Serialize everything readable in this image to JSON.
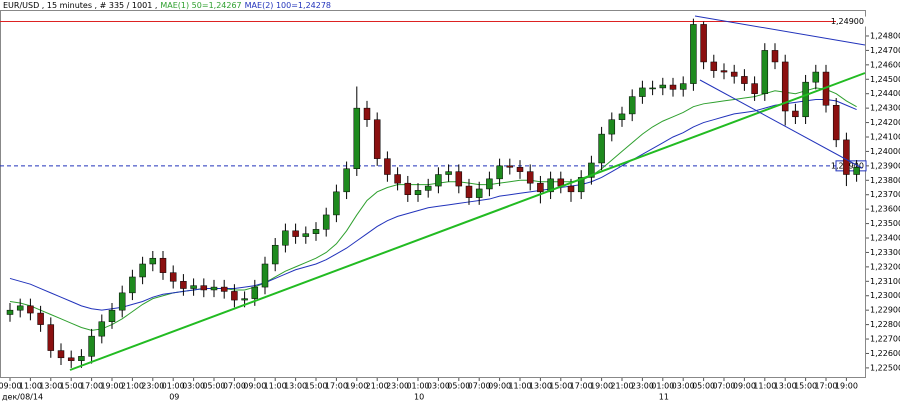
{
  "chart_data": {
    "type": "candlestick",
    "title": "EUR/USD , 15 minutes , # 335 / 1001 ,",
    "categories": [
      "09:00",
      null,
      "11:00",
      null,
      "13:00",
      null,
      "15:00",
      null,
      "17:00",
      null,
      "19:00",
      null,
      "21:00",
      null,
      "23:00",
      null,
      "01:00",
      null,
      "03:00",
      null,
      "05:00",
      null,
      "07:00",
      null,
      "09:00",
      null,
      "11:00",
      null,
      "13:00",
      null,
      "15:00",
      null,
      "17:00",
      null,
      "19:00",
      null,
      "21:00",
      null,
      "23:00",
      null,
      "01:00",
      null,
      "03:00",
      null,
      "05:00",
      null,
      "07:00",
      null,
      "09:00",
      null,
      "11:00",
      null,
      "13:00",
      null,
      "15:00",
      null,
      "17:00",
      null,
      "19:00",
      null,
      "21:00",
      null,
      "23:00",
      null,
      "01:00",
      null,
      "03:00",
      null,
      "05:00",
      null,
      "07:00",
      null,
      "09:00",
      null,
      "11:00",
      null,
      "13:00",
      null,
      "15:00",
      null,
      "17:00",
      null,
      "19:00",
      null
    ],
    "day_categories": [
      "дек/08/14",
      null,
      null,
      null,
      null,
      null,
      null,
      null,
      null,
      null,
      null,
      null,
      null,
      null,
      null,
      null,
      "09",
      null,
      null,
      null,
      null,
      null,
      null,
      null,
      null,
      null,
      null,
      null,
      null,
      null,
      null,
      null,
      null,
      null,
      null,
      null,
      null,
      null,
      null,
      null,
      "10",
      null,
      null,
      null,
      null,
      null,
      null,
      null,
      null,
      null,
      null,
      null,
      null,
      null,
      null,
      null,
      null,
      null,
      null,
      null,
      null,
      null,
      null,
      null,
      "11",
      null,
      null,
      null,
      null,
      null,
      null,
      null,
      null,
      null,
      null,
      null,
      null,
      null,
      null,
      null,
      null,
      null,
      null,
      null
    ],
    "open": [
      1.2287,
      1.229,
      1.2293,
      1.2288,
      1.228,
      1.2262,
      1.2257,
      1.2255,
      1.2258,
      1.2272,
      1.2282,
      1.229,
      1.2302,
      1.2313,
      1.2322,
      1.2326,
      1.2316,
      1.231,
      1.2305,
      1.2307,
      1.2304,
      1.2306,
      1.2303,
      1.2297,
      1.2298,
      1.2306,
      1.2322,
      1.2335,
      1.2345,
      1.2341,
      1.2343,
      1.2346,
      1.2356,
      1.2372,
      1.2388,
      1.243,
      1.2422,
      1.2395,
      1.2384,
      1.2378,
      1.237,
      1.2373,
      1.2376,
      1.2384,
      1.2386,
      1.2376,
      1.2368,
      1.2374,
      1.2381,
      1.239,
      1.2389,
      1.2386,
      1.2378,
      1.2372,
      1.2381,
      1.2376,
      1.2372,
      1.2382,
      1.2392,
      1.2412,
      1.2422,
      1.2426,
      1.2438,
      1.2444,
      1.2444,
      1.2446,
      1.2443,
      1.2447,
      1.2488,
      1.2462,
      1.2456,
      1.2455,
      1.2452,
      1.2447,
      1.244,
      1.247,
      1.2462,
      1.2428,
      1.2424,
      1.2448,
      1.2455,
      1.2432,
      1.2408,
      1.2384
    ],
    "high": [
      1.2295,
      1.2298,
      1.2298,
      1.2293,
      1.2285,
      1.2267,
      1.2262,
      1.2263,
      1.2277,
      1.2287,
      1.2295,
      1.2307,
      1.2318,
      1.2327,
      1.2331,
      1.2331,
      1.2321,
      1.2315,
      1.2312,
      1.2312,
      1.2311,
      1.2311,
      1.2308,
      1.2303,
      1.2311,
      1.2327,
      1.234,
      1.235,
      1.235,
      1.2348,
      1.2351,
      1.2361,
      1.2377,
      1.2393,
      1.2445,
      1.2435,
      1.2427,
      1.24,
      1.2389,
      1.2383,
      1.2378,
      1.2381,
      1.2389,
      1.2391,
      1.2391,
      1.2381,
      1.2379,
      1.2386,
      1.2395,
      1.2395,
      1.2394,
      1.2391,
      1.2383,
      1.2386,
      1.2386,
      1.2381,
      1.2387,
      1.2397,
      1.2417,
      1.2427,
      1.2431,
      1.2443,
      1.2449,
      1.2449,
      1.2451,
      1.2451,
      1.2452,
      1.2492,
      1.249,
      1.2467,
      1.2461,
      1.246,
      1.2457,
      1.2452,
      1.2475,
      1.2475,
      1.2467,
      1.2433,
      1.2453,
      1.246,
      1.246,
      1.2437,
      1.2413,
      1.2394
    ],
    "low": [
      1.2282,
      1.2285,
      1.2283,
      1.2275,
      1.2257,
      1.2252,
      1.225,
      1.225,
      1.2253,
      1.2267,
      1.2277,
      1.2285,
      1.2297,
      1.2308,
      1.2317,
      1.2311,
      1.2305,
      1.23,
      1.23,
      1.2299,
      1.2299,
      1.2298,
      1.2292,
      1.2292,
      1.2293,
      1.2301,
      1.2317,
      1.233,
      1.2336,
      1.2336,
      1.2338,
      1.2341,
      1.2351,
      1.2367,
      1.2383,
      1.2417,
      1.239,
      1.2379,
      1.2373,
      1.2365,
      1.2365,
      1.2368,
      1.2371,
      1.2379,
      1.2371,
      1.2363,
      1.2363,
      1.2369,
      1.2376,
      1.2384,
      1.2381,
      1.2373,
      1.2364,
      1.2367,
      1.2371,
      1.2365,
      1.2367,
      1.2377,
      1.2387,
      1.2407,
      1.2417,
      1.2421,
      1.2433,
      1.2439,
      1.2439,
      1.2438,
      1.2438,
      1.2442,
      1.2457,
      1.2451,
      1.245,
      1.2447,
      1.2442,
      1.2435,
      1.2435,
      1.2457,
      1.2418,
      1.2419,
      1.2419,
      1.2443,
      1.2427,
      1.2403,
      1.2376,
      1.2379
    ],
    "close": [
      1.229,
      1.2293,
      1.2288,
      1.228,
      1.2262,
      1.2257,
      1.2255,
      1.2258,
      1.2272,
      1.2282,
      1.229,
      1.2302,
      1.2313,
      1.2322,
      1.2326,
      1.2316,
      1.231,
      1.2305,
      1.2307,
      1.2304,
      1.2306,
      1.2303,
      1.2297,
      1.2298,
      1.2306,
      1.2322,
      1.2335,
      1.2345,
      1.2341,
      1.2343,
      1.2346,
      1.2356,
      1.2372,
      1.2388,
      1.243,
      1.2422,
      1.2395,
      1.2384,
      1.2378,
      1.237,
      1.2373,
      1.2376,
      1.2384,
      1.2386,
      1.2376,
      1.2368,
      1.2374,
      1.2381,
      1.239,
      1.2389,
      1.2386,
      1.2378,
      1.2372,
      1.2381,
      1.2376,
      1.2372,
      1.2382,
      1.2392,
      1.2412,
      1.2422,
      1.2426,
      1.2438,
      1.2444,
      1.2444,
      1.2446,
      1.2443,
      1.2447,
      1.2488,
      1.2462,
      1.2456,
      1.2455,
      1.2452,
      1.2447,
      1.244,
      1.247,
      1.2462,
      1.2428,
      1.2424,
      1.2448,
      1.2455,
      1.2432,
      1.2408,
      1.2384,
      1.2389
    ],
    "up_color": "#1e8a1e",
    "down_color": "#8b1010",
    "series": [
      {
        "name": "MAE(1) 50=1,24267",
        "color": "#2fa02f",
        "values": [
          1.2296,
          1.2295,
          1.2293,
          1.229,
          1.2287,
          1.2284,
          1.2281,
          1.2278,
          1.2276,
          1.2277,
          1.228,
          1.2284,
          1.2289,
          1.2294,
          1.2298,
          1.23,
          1.2302,
          1.2303,
          1.2304,
          1.2305,
          1.2305,
          1.2305,
          1.2304,
          1.2304,
          1.2306,
          1.2309,
          1.2313,
          1.2317,
          1.232,
          1.2323,
          1.2326,
          1.233,
          1.2336,
          1.2345,
          1.2356,
          1.2366,
          1.2372,
          1.2375,
          1.2377,
          1.2377,
          1.2377,
          1.2377,
          1.2378,
          1.2379,
          1.2379,
          1.2378,
          1.2377,
          1.2377,
          1.2378,
          1.2379,
          1.238,
          1.238,
          1.2379,
          1.2379,
          1.2379,
          1.2379,
          1.238,
          1.2383,
          1.2388,
          1.2394,
          1.24,
          1.2406,
          1.2412,
          1.2417,
          1.2421,
          1.2424,
          1.2427,
          1.2431,
          1.2433,
          1.2434,
          1.2435,
          1.2436,
          1.2437,
          1.2438,
          1.244,
          1.2442,
          1.2441,
          1.244,
          1.2442,
          1.2444,
          1.2443,
          1.244,
          1.2435,
          1.2431
        ]
      },
      {
        "name": "MAE(2) 100=1,24278",
        "color": "#2233bb",
        "values": [
          1.2312,
          1.231,
          1.2308,
          1.2305,
          1.2302,
          1.2299,
          1.2296,
          1.2293,
          1.2291,
          1.229,
          1.2291,
          1.2292,
          1.2294,
          1.2296,
          1.2299,
          1.2301,
          1.2302,
          1.2303,
          1.2304,
          1.2305,
          1.2305,
          1.2305,
          1.2305,
          1.2306,
          1.2307,
          1.2309,
          1.2312,
          1.2315,
          1.2318,
          1.232,
          1.2322,
          1.2325,
          1.2329,
          1.2333,
          1.2338,
          1.2343,
          1.2348,
          1.2352,
          1.2355,
          1.2357,
          1.2359,
          1.2361,
          1.2362,
          1.2363,
          1.2364,
          1.2365,
          1.2366,
          1.2367,
          1.2369,
          1.237,
          1.2371,
          1.2372,
          1.2373,
          1.2374,
          1.2375,
          1.2376,
          1.2377,
          1.2379,
          1.2382,
          1.2386,
          1.239,
          1.2394,
          1.2398,
          1.2402,
          1.2406,
          1.241,
          1.2413,
          1.2417,
          1.242,
          1.2422,
          1.2424,
          1.2426,
          1.2427,
          1.2428,
          1.243,
          1.2432,
          1.2433,
          1.2434,
          1.2435,
          1.2436,
          1.2436,
          1.2435,
          1.2432,
          1.2429
        ]
      }
    ],
    "levels": [
      {
        "value": 1.249,
        "label": "1,24900",
        "color": "#dd2222",
        "dashed": false
      },
      {
        "value": 1.239,
        "label": "1,23900",
        "color": "#2233bb",
        "dashed": true
      }
    ],
    "ylim": [
      1.2243,
      1.2498
    ],
    "yticks": [
      {
        "value": 1.225,
        "label": "1,22500"
      },
      {
        "value": 1.226,
        "label": "1,22600"
      },
      {
        "value": 1.227,
        "label": "1,22700"
      },
      {
        "value": 1.228,
        "label": "1,22800"
      },
      {
        "value": 1.229,
        "label": "1,22900"
      },
      {
        "value": 1.23,
        "label": "1,23000"
      },
      {
        "value": 1.231,
        "label": "1,23100"
      },
      {
        "value": 1.232,
        "label": "1,23200"
      },
      {
        "value": 1.233,
        "label": "1,23300"
      },
      {
        "value": 1.234,
        "label": "1,23400"
      },
      {
        "value": 1.235,
        "label": "1,23500"
      },
      {
        "value": 1.236,
        "label": "1,23600"
      },
      {
        "value": 1.237,
        "label": "1,23700"
      },
      {
        "value": 1.238,
        "label": "1,23800"
      },
      {
        "value": 1.239,
        "label": "1,23900"
      },
      {
        "value": 1.24,
        "label": "1,24000"
      },
      {
        "value": 1.241,
        "label": "1,24100"
      },
      {
        "value": 1.242,
        "label": "1,24200"
      },
      {
        "value": 1.243,
        "label": "1,24300"
      },
      {
        "value": 1.244,
        "label": "1,24400"
      },
      {
        "value": 1.245,
        "label": "1,24500"
      },
      {
        "value": 1.246,
        "label": "1,24600"
      },
      {
        "value": 1.247,
        "label": "1,24700"
      },
      {
        "value": 1.248,
        "label": "1,24800"
      }
    ],
    "grid": false
  }
}
